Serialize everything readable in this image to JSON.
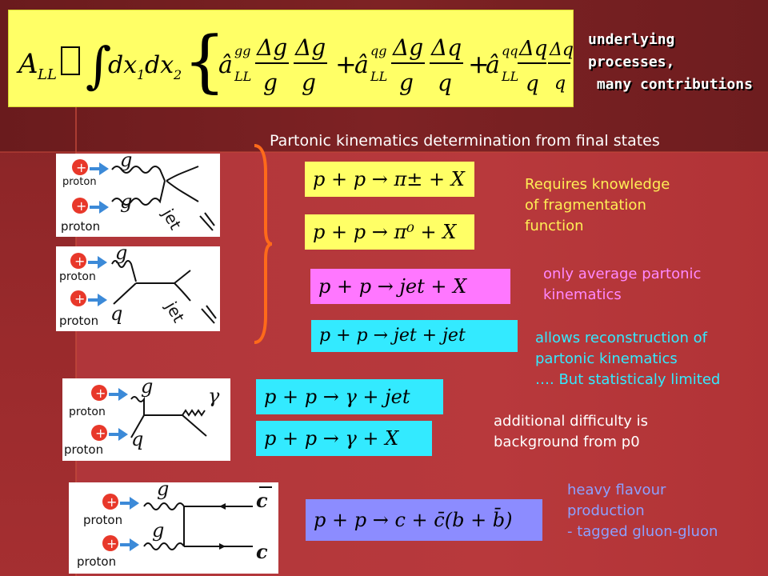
{
  "top": {
    "formula": "A_LL ∝ ∫dx₁dx₂{â_LL^gg (Δg/g)(Δg/g) + â_LL^qg (Δg/g)(Δq/q) + â_LL^qq (Δq/q)(Δq/q)}",
    "note_line1": "underlying",
    "note_line2": "processes,",
    "note_line3": " many contributions"
  },
  "heading": "Partonic kinematics determination from final states",
  "reactions": {
    "pi_charged": "p + p → π± + X",
    "pi_zero": "p + p → π⁰ + X",
    "jet_x": "p + p → jet + X",
    "jet_jet": "p + p → jet + jet",
    "gamma_jet": "p + p → γ + jet",
    "gamma_x": "p + p → γ + X",
    "heavy": "p + p → c + c̄(b + b̄)"
  },
  "notes": {
    "frag_1": "Requires knowledge",
    "frag_2": "of fragmentation",
    "frag_3": "function",
    "avg_1": "only average partonic",
    "avg_2": "kinematics",
    "recon_1": "allows reconstruction of",
    "recon_2": "partonic kinematics",
    "recon_3": "…. But statisticaly limited",
    "bg_1": "additional difficulty is",
    "bg_2": "background from p0",
    "hf_1": "heavy flavour",
    "hf_2": "production",
    "hf_3": "- tagged gluon-gluon"
  },
  "diagrams": {
    "proton": "proton",
    "g": "g",
    "q": "q",
    "jet": "jet",
    "gamma": "γ",
    "c": "c",
    "plus": "+"
  },
  "colors": {
    "formula_bg": "#ffff66",
    "pink_box": "#ff77ff",
    "cyan_box": "#33eaff",
    "blue_box": "#8c8cff",
    "brace": "#ff6a1a"
  }
}
